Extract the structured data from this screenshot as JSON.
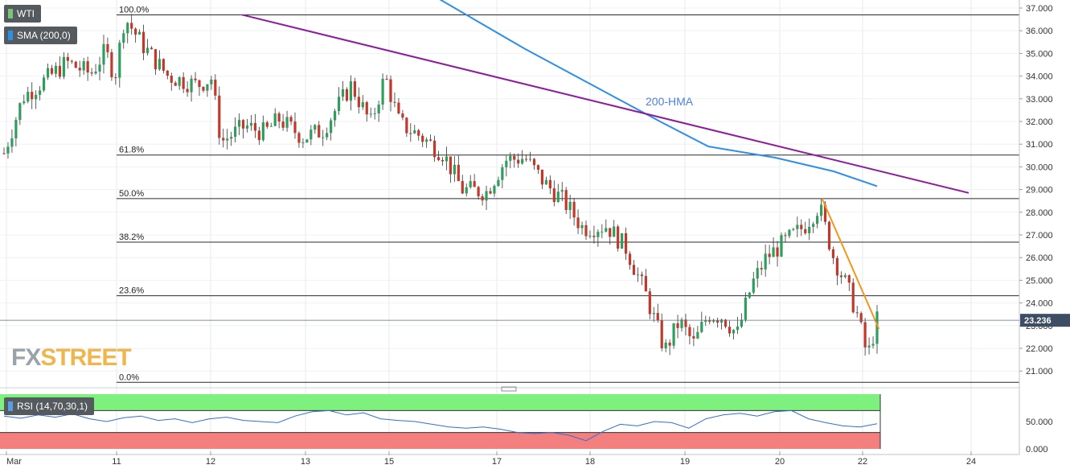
{
  "header": {
    "symbol": "WTI",
    "indicator": "SMA (200,0)",
    "symbol_color": "#7cc576",
    "indicator_color": "#2f8fe0"
  },
  "watermark": {
    "part1": "FX",
    "part2": "STREET"
  },
  "chart_data": {
    "type": "candlestick",
    "price_axis": {
      "labels": [
        "37.000",
        "36.000",
        "35.000",
        "34.000",
        "33.000",
        "32.000",
        "31.000",
        "30.000",
        "29.000",
        "28.000",
        "27.000",
        "26.000",
        "25.000",
        "24.000",
        "23.000",
        "22.000",
        "21.000"
      ],
      "range": [
        20.5,
        37.2
      ]
    },
    "time_axis": {
      "labels": [
        "Mar",
        "11",
        "12",
        "13",
        "15",
        "17",
        "18",
        "19",
        "20",
        "22",
        "24"
      ]
    },
    "current_price": "23.236",
    "fibonacci": [
      {
        "label": "100.0%",
        "price": 36.7
      },
      {
        "label": "61.8%",
        "price": 30.52
      },
      {
        "label": "50.0%",
        "price": 28.6
      },
      {
        "label": "38.2%",
        "price": 26.68
      },
      {
        "label": "23.6%",
        "price": 24.32
      },
      {
        "label": "0.0%",
        "price": 20.5
      }
    ],
    "annotations": [
      {
        "label": "200-HMA",
        "color": "#4f7fe0"
      }
    ],
    "trendlines": [
      {
        "name": "falling-resistance",
        "color": "#8e1a9e",
        "from": {
          "bar": 0.247,
          "price": 36.7
        },
        "to": {
          "bar": 1.0,
          "price": 28.85
        }
      },
      {
        "name": "short-term-resistance",
        "color": "#f5951e",
        "from": {
          "bar": 0.848,
          "price": 28.6
        },
        "to": {
          "bar": 0.907,
          "price": 22.85
        }
      }
    ],
    "hma_200": [
      {
        "t": 0.447,
        "p": 37.5
      },
      {
        "t": 0.54,
        "p": 35.2
      },
      {
        "t": 0.61,
        "p": 33.6
      },
      {
        "t": 0.68,
        "p": 32.0
      },
      {
        "t": 0.73,
        "p": 30.9
      },
      {
        "t": 0.8,
        "p": 30.4
      },
      {
        "t": 0.86,
        "p": 29.8
      },
      {
        "t": 0.905,
        "p": 29.15
      }
    ],
    "close_path": [
      {
        "t": 0.0,
        "p": 30.6
      },
      {
        "t": 0.02,
        "p": 33.1
      },
      {
        "t": 0.045,
        "p": 33.9
      },
      {
        "t": 0.065,
        "p": 34.6
      },
      {
        "t": 0.09,
        "p": 34.1
      },
      {
        "t": 0.105,
        "p": 35.1
      },
      {
        "t": 0.115,
        "p": 34.0
      },
      {
        "t": 0.125,
        "p": 36.6
      },
      {
        "t": 0.145,
        "p": 35.3
      },
      {
        "t": 0.17,
        "p": 34.0
      },
      {
        "t": 0.2,
        "p": 33.6
      },
      {
        "t": 0.215,
        "p": 33.9
      },
      {
        "t": 0.225,
        "p": 31.1
      },
      {
        "t": 0.25,
        "p": 31.8
      },
      {
        "t": 0.27,
        "p": 31.5
      },
      {
        "t": 0.285,
        "p": 32.1
      },
      {
        "t": 0.31,
        "p": 31.3
      },
      {
        "t": 0.33,
        "p": 31.6
      },
      {
        "t": 0.36,
        "p": 33.6
      },
      {
        "t": 0.38,
        "p": 31.9
      },
      {
        "t": 0.395,
        "p": 34.0
      },
      {
        "t": 0.41,
        "p": 31.9
      },
      {
        "t": 0.43,
        "p": 31.4
      },
      {
        "t": 0.455,
        "p": 30.6
      },
      {
        "t": 0.475,
        "p": 29.0
      },
      {
        "t": 0.5,
        "p": 28.9
      },
      {
        "t": 0.52,
        "p": 30.3
      },
      {
        "t": 0.54,
        "p": 30.4
      },
      {
        "t": 0.56,
        "p": 29.3
      },
      {
        "t": 0.58,
        "p": 28.5
      },
      {
        "t": 0.6,
        "p": 27.3
      },
      {
        "t": 0.625,
        "p": 27.4
      },
      {
        "t": 0.645,
        "p": 26.4
      },
      {
        "t": 0.665,
        "p": 24.4
      },
      {
        "t": 0.685,
        "p": 21.9
      },
      {
        "t": 0.7,
        "p": 23.2
      },
      {
        "t": 0.715,
        "p": 22.2
      },
      {
        "t": 0.73,
        "p": 23.5
      },
      {
        "t": 0.745,
        "p": 23.4
      },
      {
        "t": 0.76,
        "p": 22.6
      },
      {
        "t": 0.775,
        "p": 24.8
      },
      {
        "t": 0.79,
        "p": 26.0
      },
      {
        "t": 0.81,
        "p": 26.7
      },
      {
        "t": 0.83,
        "p": 27.4
      },
      {
        "t": 0.845,
        "p": 28.3
      },
      {
        "t": 0.86,
        "p": 26.0
      },
      {
        "t": 0.875,
        "p": 24.6
      },
      {
        "t": 0.885,
        "p": 23.4
      },
      {
        "t": 0.895,
        "p": 21.6
      },
      {
        "t": 0.905,
        "p": 23.236
      }
    ],
    "rsi": {
      "label": "RSI (14,70,30,1)",
      "levels": [
        "50.000",
        "0.000"
      ],
      "overbought": 70,
      "oversold": 30,
      "values": [
        60,
        56,
        62,
        58,
        64,
        55,
        50,
        57,
        60,
        52,
        55,
        48,
        55,
        58,
        52,
        50,
        48,
        60,
        68,
        70,
        62,
        66,
        55,
        52,
        50,
        45,
        40,
        38,
        40,
        36,
        30,
        28,
        30,
        25,
        15,
        32,
        45,
        42,
        50,
        48,
        38,
        55,
        62,
        65,
        60,
        68,
        70,
        55,
        48,
        42,
        40,
        46
      ]
    }
  }
}
